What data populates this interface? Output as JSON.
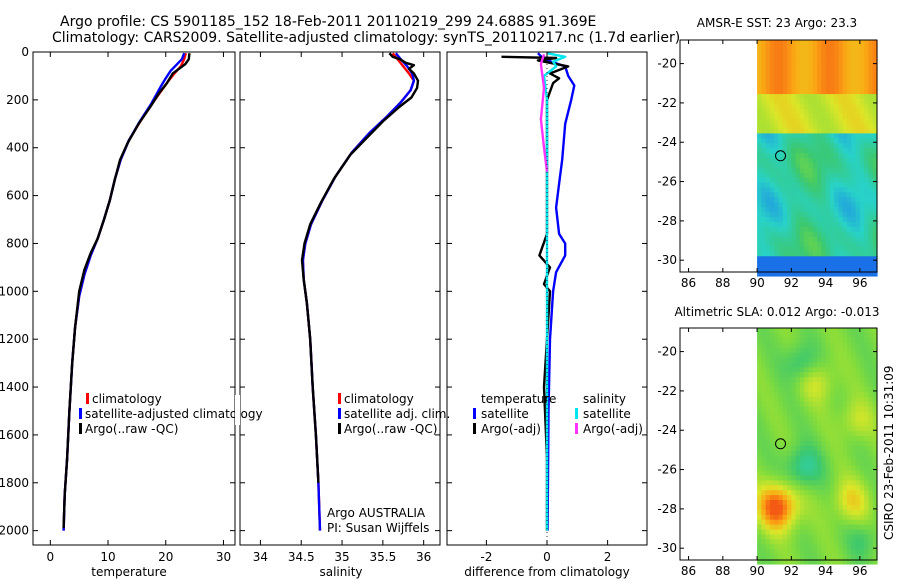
{
  "header": {
    "line1": "Argo profile: CS 5901185_152 18-Feb-2011 20110219_299 24.688S 91.369E",
    "line2": "Climatology: CARS2009. Satellite-adjusted climatology: synTS_20110217.nc (1.7d earlier)"
  },
  "side_label": "CSIRO 23-Feb-2011 10:31:09",
  "colors": {
    "climatology": "#ff0000",
    "satellite": "#0000ff",
    "argo": "#000000",
    "salt_satellite": "#00e5ee",
    "salt_argo": "#ff33ff"
  },
  "chart_data": [
    {
      "type": "line",
      "name": "temperature-profile",
      "xlabel": "temperature",
      "xlim": [
        -3,
        32
      ],
      "ylim": [
        0,
        2060
      ],
      "xticks": [
        "0",
        "10",
        "20",
        "30"
      ],
      "yticks": [
        "0",
        "200",
        "400",
        "600",
        "800",
        "1000",
        "1200",
        "1400",
        "1600",
        "1800",
        "2000"
      ],
      "ytick_values": [
        0,
        200,
        400,
        600,
        800,
        1000,
        1200,
        1400,
        1600,
        1800,
        2000
      ],
      "legend": [
        "climatology",
        "satellite-adjusted climatology",
        "Argo(..raw -QC)"
      ],
      "series": [
        {
          "name": "climatology",
          "color": "#ff0000",
          "points": [
            [
              23.5,
              5
            ],
            [
              23.2,
              30
            ],
            [
              22.6,
              60
            ],
            [
              21.5,
              90
            ],
            [
              20.5,
              120
            ],
            [
              19.3,
              160
            ],
            [
              17.5,
              220
            ],
            [
              15.6,
              290
            ],
            [
              13.6,
              370
            ],
            [
              12.2,
              450
            ],
            [
              11.2,
              530
            ],
            [
              10.3,
              620
            ],
            [
              9.3,
              700
            ],
            [
              8.2,
              780
            ],
            [
              7.0,
              850
            ],
            [
              5.9,
              930
            ],
            [
              5.0,
              1020
            ],
            [
              4.3,
              1150
            ],
            [
              3.8,
              1300
            ],
            [
              3.3,
              1500
            ],
            [
              2.9,
              1700
            ],
            [
              2.5,
              1850
            ],
            [
              2.3,
              2000
            ]
          ]
        },
        {
          "name": "satellite-adjusted climatology",
          "color": "#0000ff",
          "points": [
            [
              23.2,
              5
            ],
            [
              22.8,
              30
            ],
            [
              21.8,
              55
            ],
            [
              20.8,
              80
            ],
            [
              20.0,
              110
            ],
            [
              19.0,
              150
            ],
            [
              17.4,
              220
            ],
            [
              15.5,
              290
            ],
            [
              13.6,
              370
            ],
            [
              12.2,
              450
            ],
            [
              11.2,
              530
            ],
            [
              10.3,
              620
            ],
            [
              9.3,
              700
            ],
            [
              8.2,
              780
            ],
            [
              7.0,
              850
            ],
            [
              5.9,
              930
            ],
            [
              5.0,
              1020
            ],
            [
              4.3,
              1150
            ],
            [
              3.8,
              1300
            ],
            [
              3.3,
              1500
            ],
            [
              2.9,
              1700
            ],
            [
              2.5,
              1850
            ],
            [
              2.3,
              2000
            ]
          ]
        },
        {
          "name": "Argo(..raw -QC)",
          "color": "#000000",
          "points": [
            [
              24.1,
              5
            ],
            [
              24.0,
              30
            ],
            [
              23.4,
              50
            ],
            [
              22.6,
              65
            ],
            [
              21.2,
              90
            ],
            [
              20.2,
              130
            ],
            [
              18.9,
              170
            ],
            [
              17.3,
              230
            ],
            [
              15.3,
              300
            ],
            [
              13.4,
              380
            ],
            [
              12.1,
              450
            ],
            [
              11.2,
              530
            ],
            [
              10.3,
              620
            ],
            [
              9.3,
              700
            ],
            [
              8.2,
              780
            ],
            [
              7.0,
              840
            ],
            [
              5.9,
              910
            ],
            [
              5.0,
              1000
            ],
            [
              4.3,
              1150
            ],
            [
              3.8,
              1300
            ],
            [
              3.3,
              1500
            ],
            [
              2.9,
              1700
            ],
            [
              2.5,
              1850
            ],
            [
              2.3,
              1990
            ]
          ]
        }
      ]
    },
    {
      "type": "line",
      "name": "salinity-profile",
      "xlabel": "salinity",
      "xlim": [
        33.75,
        36.2
      ],
      "ylim": [
        0,
        2060
      ],
      "xticks": [
        "34",
        "34.5",
        "35",
        "35.5",
        "36"
      ],
      "xtick_values": [
        34,
        34.5,
        35,
        35.5,
        36
      ],
      "legend": [
        "climatology",
        "satellite adj. clim.",
        "Argo(..raw -QC)"
      ],
      "annotation": [
        "Argo AUSTRALIA",
        "PI: Susan Wijffels"
      ],
      "series": [
        {
          "name": "climatology",
          "color": "#ff0000",
          "points": [
            [
              35.62,
              5
            ],
            [
              35.68,
              30
            ],
            [
              35.75,
              60
            ],
            [
              35.82,
              90
            ],
            [
              35.88,
              120
            ],
            [
              35.84,
              160
            ],
            [
              35.72,
              210
            ],
            [
              35.55,
              270
            ],
            [
              35.33,
              340
            ],
            [
              35.12,
              420
            ],
            [
              34.92,
              520
            ],
            [
              34.76,
              620
            ],
            [
              34.62,
              720
            ],
            [
              34.55,
              800
            ],
            [
              34.52,
              870
            ],
            [
              34.53,
              950
            ],
            [
              34.57,
              1050
            ],
            [
              34.61,
              1200
            ],
            [
              34.64,
              1400
            ],
            [
              34.68,
              1600
            ],
            [
              34.71,
              1800
            ],
            [
              34.73,
              2000
            ]
          ]
        },
        {
          "name": "satellite adj. clim.",
          "color": "#0000ff",
          "points": [
            [
              35.66,
              5
            ],
            [
              35.72,
              30
            ],
            [
              35.8,
              60
            ],
            [
              35.86,
              90
            ],
            [
              35.88,
              120
            ],
            [
              35.84,
              160
            ],
            [
              35.72,
              210
            ],
            [
              35.55,
              270
            ],
            [
              35.33,
              340
            ],
            [
              35.12,
              420
            ],
            [
              34.92,
              520
            ],
            [
              34.76,
              620
            ],
            [
              34.62,
              720
            ],
            [
              34.55,
              800
            ],
            [
              34.52,
              870
            ],
            [
              34.53,
              950
            ],
            [
              34.57,
              1050
            ],
            [
              34.61,
              1200
            ],
            [
              34.64,
              1400
            ],
            [
              34.68,
              1600
            ],
            [
              34.71,
              1800
            ],
            [
              34.73,
              2000
            ]
          ]
        },
        {
          "name": "Argo(..raw -QC)",
          "color": "#000000",
          "points": [
            [
              35.58,
              5
            ],
            [
              35.62,
              20
            ],
            [
              35.71,
              30
            ],
            [
              35.78,
              45
            ],
            [
              35.88,
              55
            ],
            [
              35.82,
              70
            ],
            [
              35.88,
              90
            ],
            [
              35.93,
              120
            ],
            [
              35.92,
              150
            ],
            [
              35.85,
              190
            ],
            [
              35.7,
              230
            ],
            [
              35.5,
              290
            ],
            [
              35.3,
              360
            ],
            [
              35.1,
              430
            ],
            [
              34.9,
              530
            ],
            [
              34.74,
              630
            ],
            [
              34.61,
              720
            ],
            [
              34.54,
              800
            ],
            [
              34.51,
              870
            ],
            [
              34.53,
              950
            ],
            [
              34.57,
              1050
            ],
            [
              34.61,
              1200
            ],
            [
              34.64,
              1400
            ],
            [
              34.68,
              1600
            ],
            [
              34.71,
              1800
            ]
          ]
        }
      ]
    },
    {
      "type": "line",
      "name": "difference-profile",
      "xlabel": "difference from climatology",
      "xlim": [
        -3.3,
        3.3
      ],
      "ylim": [
        0,
        2060
      ],
      "xticks": [
        "-2",
        "0",
        "2"
      ],
      "xtick_values": [
        -2,
        0,
        2
      ],
      "legend_headers": [
        "temperature",
        "salinity"
      ],
      "legend": [
        "satellite",
        "Argo(-adj)",
        "satellite",
        "Argo(-adj)"
      ],
      "series": [
        {
          "name": "temperature satellite",
          "color": "#0000ff",
          "points": [
            [
              -0.3,
              5
            ],
            [
              -0.1,
              30
            ],
            [
              0.6,
              60
            ],
            [
              0.7,
              100
            ],
            [
              0.9,
              140
            ],
            [
              0.8,
              200
            ],
            [
              0.6,
              300
            ],
            [
              0.5,
              450
            ],
            [
              0.4,
              550
            ],
            [
              0.3,
              650
            ],
            [
              0.4,
              760
            ],
            [
              0.6,
              800
            ],
            [
              0.6,
              850
            ],
            [
              0.3,
              920
            ],
            [
              0.2,
              1000
            ],
            [
              0.1,
              1200
            ],
            [
              0.05,
              1500
            ],
            [
              0.02,
              2000
            ]
          ]
        },
        {
          "name": "temperature Argo(-adj)",
          "color": "#000000",
          "points": [
            [
              -1.5,
              20
            ],
            [
              0.3,
              25
            ],
            [
              -0.3,
              35
            ],
            [
              0.7,
              60
            ],
            [
              0.1,
              90
            ],
            [
              0.4,
              110
            ],
            [
              0.2,
              130
            ],
            [
              0.0,
              200
            ],
            [
              0.0,
              400
            ],
            [
              0.0,
              760
            ],
            [
              -0.25,
              850
            ],
            [
              0.1,
              900
            ],
            [
              -0.1,
              970
            ],
            [
              0.1,
              1000
            ],
            [
              0.0,
              1200
            ],
            [
              -0.1,
              1400
            ],
            [
              0.0,
              1700
            ],
            [
              0.0,
              2000
            ]
          ]
        },
        {
          "name": "salinity satellite",
          "color": "#00e5ee",
          "points": [
            [
              0.0,
              5
            ],
            [
              0.6,
              20
            ],
            [
              0.2,
              40
            ],
            [
              0.3,
              60
            ],
            [
              -0.1,
              100
            ],
            [
              0.0,
              200
            ],
            [
              0.0,
              500
            ],
            [
              0.0,
              800
            ],
            [
              0.0,
              1000
            ],
            [
              0.0,
              1300
            ],
            [
              0.0,
              1600
            ],
            [
              0.0,
              2000
            ]
          ]
        },
        {
          "name": "salinity Argo(-adj)",
          "color": "#ff33ff",
          "points": [
            [
              -0.1,
              10
            ],
            [
              -0.2,
              50
            ],
            [
              -0.1,
              150
            ],
            [
              -0.2,
              280
            ],
            [
              -0.1,
              400
            ],
            [
              0.0,
              500
            ]
          ]
        }
      ]
    },
    {
      "type": "heatmap",
      "name": "amsr-sst-map",
      "title": "AMSR-E SST: 23  Argo: 23.3",
      "xlim": [
        85.5,
        97
      ],
      "ylim": [
        -30.6,
        -18.8
      ],
      "xticks": [
        "86",
        "88",
        "90",
        "92",
        "94",
        "96"
      ],
      "xtick_values": [
        86,
        88,
        90,
        92,
        94,
        96
      ],
      "yticks": [
        "-20",
        "-22",
        "-24",
        "-26",
        "-28",
        "-30"
      ],
      "ytick_values": [
        -20,
        -22,
        -24,
        -26,
        -28,
        -30
      ],
      "data_lon_range": [
        90,
        97
      ],
      "float_position": [
        91.369,
        -24.688
      ]
    },
    {
      "type": "heatmap",
      "name": "altimetric-sla-map",
      "title": "Altimetric SLA: 0.012  Argo: -0.013",
      "xlim": [
        85.5,
        97
      ],
      "ylim": [
        -30.6,
        -18.8
      ],
      "xticks": [
        "86",
        "88",
        "90",
        "92",
        "94",
        "96"
      ],
      "xtick_values": [
        86,
        88,
        90,
        92,
        94,
        96
      ],
      "yticks": [
        "-20",
        "-22",
        "-24",
        "-26",
        "-28",
        "-30"
      ],
      "ytick_values": [
        -20,
        -22,
        -24,
        -26,
        -28,
        -30
      ],
      "data_lon_range": [
        90,
        97
      ],
      "float_position": [
        91.369,
        -24.688
      ]
    }
  ]
}
